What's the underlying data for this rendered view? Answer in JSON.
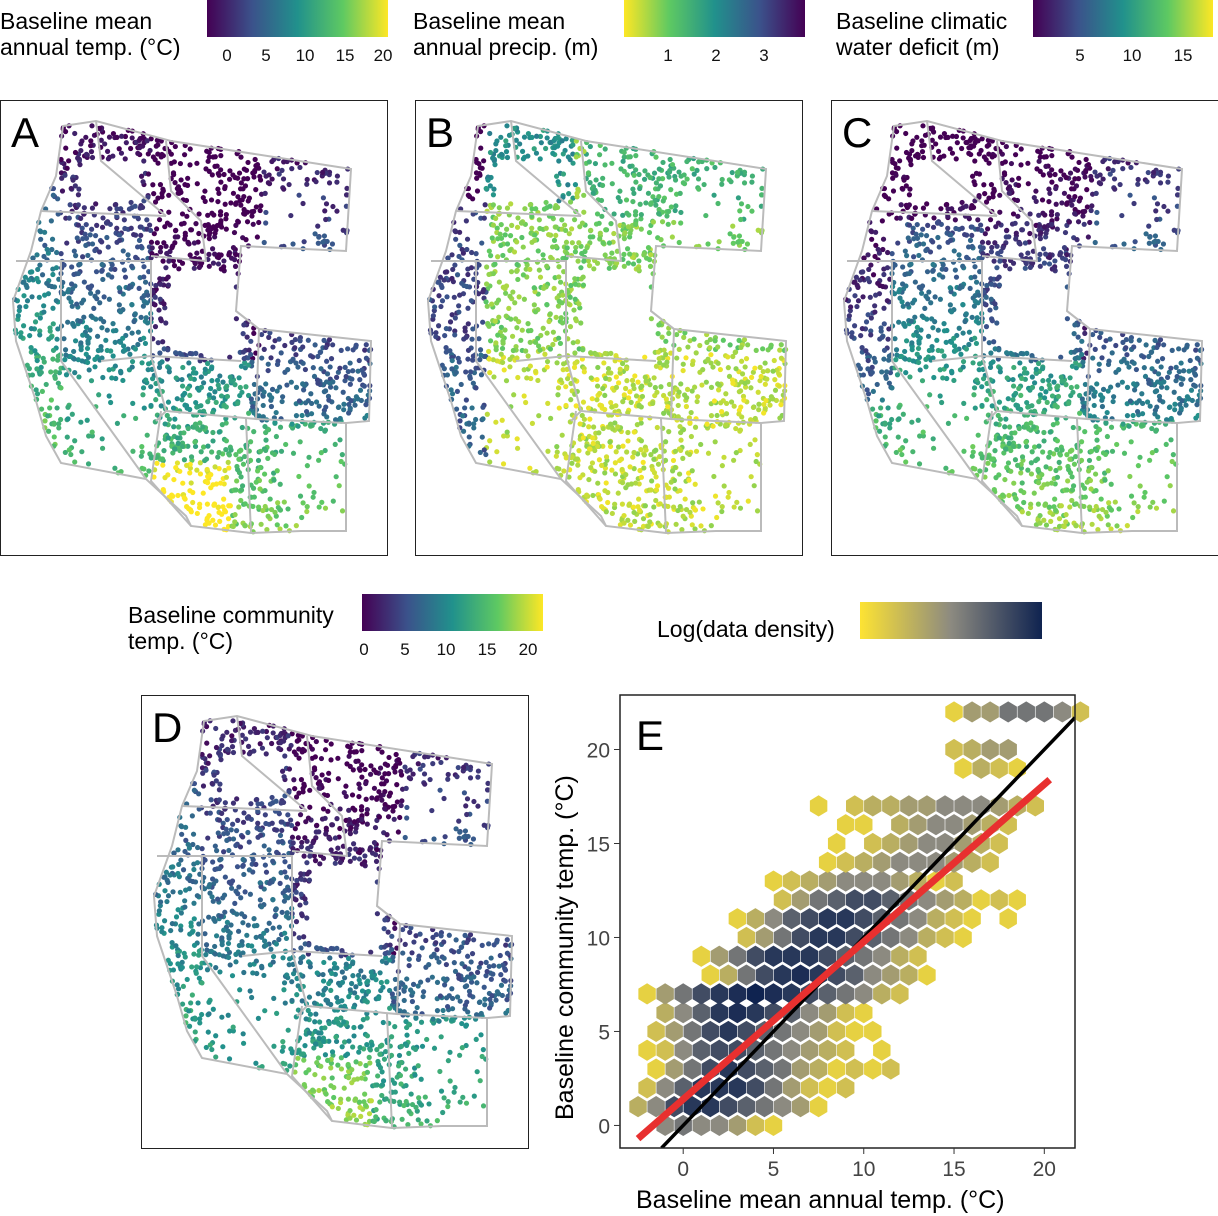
{
  "legends": {
    "temp": {
      "title_l1": "Baseline mean",
      "title_l2": "annual temp. (°C)",
      "ticks": [
        "0",
        "5",
        "10",
        "15",
        "20"
      ]
    },
    "precip": {
      "title_l1": "Baseline mean",
      "title_l2": "annual precip. (m)",
      "ticks": [
        "1",
        "2",
        "3"
      ]
    },
    "cwd": {
      "title_l1": "Baseline climatic",
      "title_l2": "water deficit (m)",
      "ticks": [
        "5",
        "10",
        "15"
      ]
    },
    "community": {
      "title_l1": "Baseline community",
      "title_l2": "temp. (°C)",
      "ticks": [
        "0",
        "5",
        "10",
        "15",
        "20"
      ]
    },
    "density": {
      "title": "Log(data density)"
    }
  },
  "colors": {
    "viridis": [
      "#440154",
      "#3b528b",
      "#21918c",
      "#5ec962",
      "#fde725"
    ],
    "density": [
      "#fde333",
      "#8c8a80",
      "#0f2350"
    ],
    "regression": "#e8302f",
    "identity": "#000000",
    "state_border": "#bbbbbb"
  },
  "panels": {
    "A": "A",
    "B": "B",
    "C": "C",
    "D": "D",
    "E": "E"
  },
  "chart_data": {
    "type": "hexbin",
    "xlabel": "Baseline mean annual temp. (°C)",
    "ylabel": "Baseline community temp. (°C)",
    "xlim": [
      -3.5,
      21.7
    ],
    "ylim": [
      -1.2,
      22.9
    ],
    "xticks": [
      0,
      5,
      10,
      15,
      20
    ],
    "yticks": [
      0,
      5,
      10,
      15,
      20
    ],
    "grid": false,
    "fill_label": "Log(data density)",
    "hex_rows": [
      {
        "y": 0,
        "x0": -1,
        "d": [
          0.5,
          0.6,
          0.5,
          0.5,
          0.4,
          0.2,
          0.1
        ]
      },
      {
        "y": 1,
        "x0": -2.5,
        "d": [
          0.3,
          0.5,
          0.8,
          0.9,
          0.9,
          0.8,
          0.7,
          0.6,
          0.5,
          0.4,
          0.1
        ]
      },
      {
        "y": 2,
        "x0": -2,
        "d": [
          0.2,
          0.5,
          0.7,
          0.9,
          0.9,
          0.9,
          0.8,
          0.6,
          0.4,
          0.2,
          0.1,
          0.2
        ]
      },
      {
        "y": 3,
        "x0": -1.5,
        "d": [
          0.1,
          0.4,
          0.6,
          0.8,
          0.9,
          0.8,
          0.7,
          0.6,
          0.4,
          0.3,
          0.1,
          0.2,
          0.1,
          0.2
        ]
      },
      {
        "y": 4,
        "x0": -2,
        "d": [
          0.1,
          0.2,
          0.5,
          0.7,
          0.8,
          0.8,
          0.7,
          0.6,
          0.5,
          0.4,
          0.3,
          0.2,
          0,
          0.1
        ]
      },
      {
        "y": 5,
        "x0": -1.5,
        "d": [
          0.2,
          0.4,
          0.6,
          0.8,
          0.9,
          0.8,
          0.7,
          0.6,
          0.5,
          0.4,
          0.2,
          0.1,
          0.1
        ]
      },
      {
        "y": 6,
        "x0": -1,
        "d": [
          0.3,
          0.5,
          0.7,
          0.9,
          0.95,
          0.9,
          0.8,
          0.7,
          0.5,
          0.4,
          0.2,
          0.1
        ]
      },
      {
        "y": 7,
        "x0": -2,
        "d": [
          0.1,
          0.4,
          0.6,
          0.8,
          0.9,
          0.95,
          1,
          0.95,
          0.9,
          0.8,
          0.7,
          0.6,
          0.5,
          0.3,
          0.2
        ]
      },
      {
        "y": 8,
        "x0": 1.5,
        "d": [
          0.1,
          0.3,
          0.6,
          0.8,
          0.9,
          0.95,
          0.9,
          0.8,
          0.7,
          0.5,
          0.4,
          0.3,
          0.1
        ]
      },
      {
        "y": 9,
        "x0": 1,
        "d": [
          0.1,
          0.4,
          0.6,
          0.8,
          0.9,
          0.9,
          0.9,
          0.8,
          0.7,
          0.6,
          0.5,
          0.3,
          0.2
        ]
      },
      {
        "y": 10,
        "x0": 3.5,
        "d": [
          0.2,
          0.4,
          0.6,
          0.8,
          0.9,
          0.9,
          0.8,
          0.7,
          0.6,
          0.5,
          0.3,
          0.2,
          0.1
        ]
      },
      {
        "y": 11,
        "x0": 3,
        "d": [
          0.1,
          0.3,
          0.5,
          0.7,
          0.8,
          0.9,
          0.9,
          0.8,
          0.7,
          0.6,
          0.5,
          0.3,
          0.2,
          0.1,
          0,
          0.1
        ]
      },
      {
        "y": 12,
        "x0": 5.5,
        "d": [
          0.2,
          0.4,
          0.6,
          0.7,
          0.8,
          0.8,
          0.7,
          0.6,
          0.5,
          0.4,
          0.3,
          0.1,
          0.2,
          0.1
        ]
      },
      {
        "y": 13,
        "x0": 5,
        "d": [
          0.1,
          0.2,
          0.3,
          0.4,
          0.5,
          0.5,
          0.5,
          0.4,
          0.3,
          0.1,
          0.2
        ]
      },
      {
        "y": 14,
        "x0": 8,
        "d": [
          0.1,
          0.2,
          0.3,
          0.4,
          0.5,
          0.5,
          0.5,
          0.4,
          0.3,
          0.2
        ]
      },
      {
        "y": 15,
        "x0": 8.5,
        "d": [
          0.1,
          0,
          0.2,
          0.3,
          0.4,
          0.5,
          0.5,
          0.4,
          0.3,
          0.2
        ]
      },
      {
        "y": 16,
        "x0": 9,
        "d": [
          0.1,
          0.1,
          0,
          0.3,
          0.4,
          0.5,
          0.5,
          0.4,
          0.3,
          0.2
        ]
      },
      {
        "y": 17,
        "x0": 7.5,
        "d": [
          0.1,
          0,
          0.2,
          0.3,
          0.3,
          0.4,
          0.4,
          0.5,
          0.5,
          0.5,
          0.4,
          0.3,
          0.2
        ]
      },
      {
        "y": 19,
        "x0": 15.5,
        "d": [
          0.1,
          0.3,
          0.2,
          0.1
        ]
      },
      {
        "y": 20,
        "x0": 15,
        "d": [
          0.2,
          0.3,
          0.4,
          0.4
        ]
      },
      {
        "y": 22,
        "x0": 15,
        "d": [
          0.1,
          0.4,
          0.4,
          0.6,
          0.6,
          0.6,
          0.5,
          0.2
        ]
      }
    ],
    "lines": [
      {
        "kind": "regression",
        "x": [
          -2.5,
          20.3
        ],
        "y": [
          -0.7,
          18.4
        ]
      },
      {
        "kind": "identity_1to1",
        "x": [
          -1.2,
          21.7
        ],
        "y": [
          -1.2,
          21.7
        ]
      }
    ]
  }
}
